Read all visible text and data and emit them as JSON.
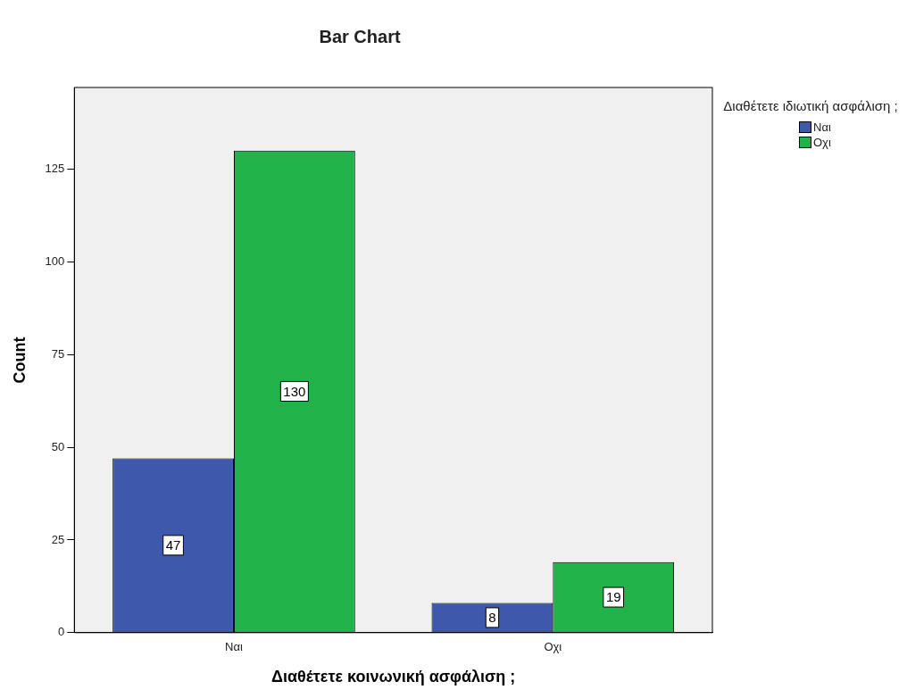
{
  "chart_data": {
    "type": "bar",
    "title": "Bar Chart",
    "xlabel": "Διαθέτετε κοινωνική ασφάλιση ;",
    "ylabel": "Count",
    "legend_title": "Διαθέτετε ιδιωτική ασφάλιση ;",
    "categories": [
      "Ναι",
      "Οχι"
    ],
    "series": [
      {
        "name": "Ναι",
        "color": "#3e58ac",
        "values": [
          47,
          8
        ]
      },
      {
        "name": "Οχι",
        "color": "#22b24a",
        "values": [
          130,
          19
        ]
      }
    ],
    "ylim": [
      0,
      147
    ],
    "yticks": [
      0,
      25,
      50,
      75,
      100,
      125
    ],
    "grid": false,
    "legend": "top right",
    "data_labels": true
  }
}
